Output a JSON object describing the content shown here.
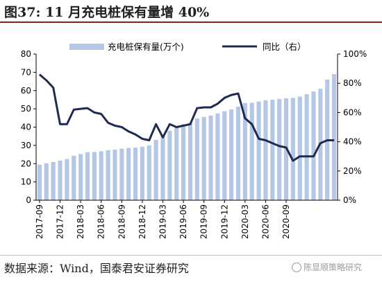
{
  "title": "图37: 11 月充电桩保有量增 40%",
  "source": "数据来源：Wind，国泰君安证券研究",
  "watermark": "陈显顺策略研究",
  "chart_data": {
    "type": "bar",
    "series": [
      {
        "name": "充电桩保有量(万个)",
        "type": "bar",
        "axis": "left",
        "color": "#b4c7e7",
        "values": [
          19.4,
          20.2,
          20.9,
          21.7,
          22.5,
          24.3,
          25.3,
          26.3,
          26.4,
          26.8,
          27.4,
          27.7,
          28.2,
          28.6,
          28.8,
          29.3,
          30.0,
          33.0,
          35.5,
          38.0,
          40.0,
          41.5,
          42.4,
          44.8,
          45.6,
          46.3,
          47.5,
          48.7,
          49.7,
          51.2,
          53.2,
          53.3,
          54.0,
          54.7,
          55.0,
          55.4,
          55.8,
          56.0,
          56.7,
          58.0,
          59.5,
          61.0,
          66.0,
          69.0
        ]
      },
      {
        "name": "同比（右）",
        "type": "line",
        "axis": "right",
        "color": "#1f2a4f",
        "values": [
          0.86,
          0.82,
          0.77,
          0.52,
          0.52,
          0.62,
          0.625,
          0.63,
          0.6,
          0.59,
          0.53,
          0.51,
          0.5,
          0.47,
          0.45,
          0.42,
          0.41,
          0.52,
          0.43,
          0.52,
          0.5,
          0.51,
          0.52,
          0.63,
          0.635,
          0.635,
          0.66,
          0.7,
          0.72,
          0.73,
          0.56,
          0.52,
          0.42,
          0.41,
          0.39,
          0.37,
          0.36,
          0.27,
          0.3,
          0.3,
          0.3,
          0.39,
          0.41,
          0.41
        ]
      }
    ],
    "x_tick_labels": [
      "2017-09",
      "2017-12",
      "2018-03",
      "2018-06",
      "2018-09",
      "2018-12",
      "2019-03",
      "2019-06",
      "2019-09",
      "2019-12",
      "2020-03",
      "2020-06",
      "2020-09"
    ],
    "x_tick_every": 3,
    "y_left_ticks": [
      "0",
      "10",
      "20",
      "30",
      "40",
      "50",
      "60",
      "70",
      "80"
    ],
    "y_left_range": [
      0,
      80
    ],
    "y_right_ticks": [
      "0%",
      "20%",
      "40%",
      "60%",
      "80%",
      "100%"
    ],
    "y_right_range": [
      0,
      1
    ],
    "legend_position": "top-center",
    "grid": false
  }
}
